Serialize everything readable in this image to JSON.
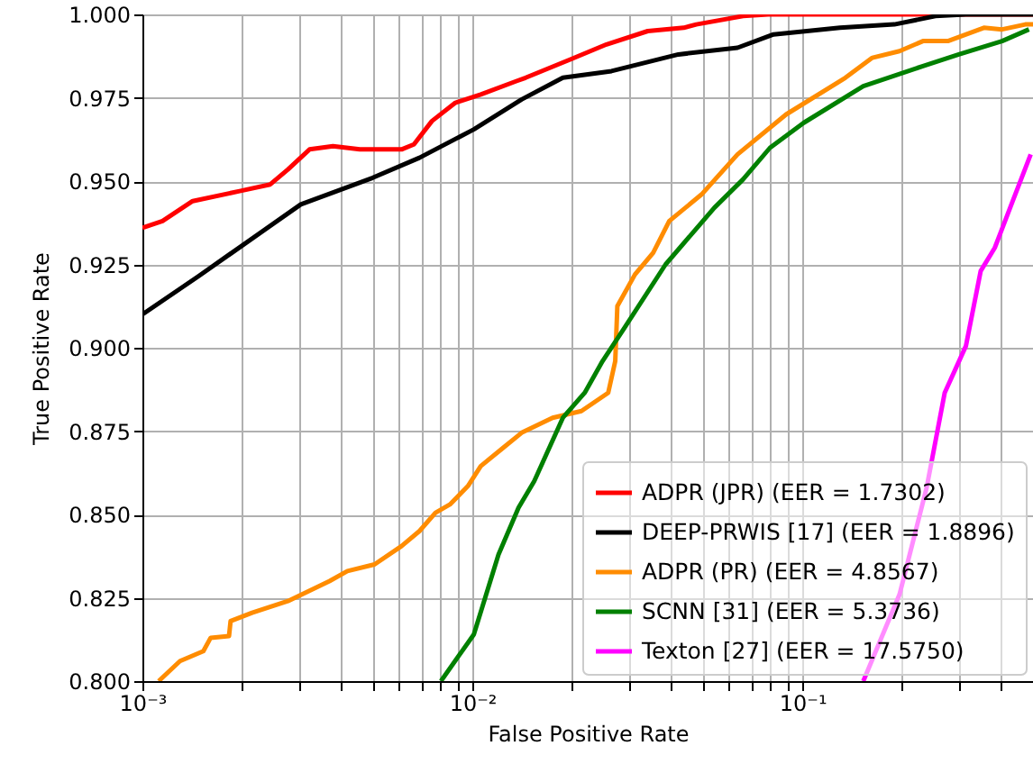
{
  "chart_data": {
    "type": "line",
    "xlabel": "False Positive Rate",
    "ylabel": "True Positive Rate",
    "log": "x",
    "grid": true,
    "legend": "bottom right",
    "xlim": [
      0.001,
      0.5
    ],
    "ylim": [
      0.8,
      1.0
    ],
    "xticks": [
      {
        "value": 0.001,
        "label": "10⁻³"
      },
      {
        "value": 0.002,
        "label": null
      },
      {
        "value": 0.003,
        "label": null
      },
      {
        "value": 0.004,
        "label": null
      },
      {
        "value": 0.005,
        "label": null
      },
      {
        "value": 0.006,
        "label": null
      },
      {
        "value": 0.007,
        "label": null
      },
      {
        "value": 0.008,
        "label": null
      },
      {
        "value": 0.009,
        "label": null
      },
      {
        "value": 0.01,
        "label": "10⁻²"
      },
      {
        "value": 0.02,
        "label": null
      },
      {
        "value": 0.03,
        "label": null
      },
      {
        "value": 0.04,
        "label": null
      },
      {
        "value": 0.05,
        "label": null
      },
      {
        "value": 0.06,
        "label": null
      },
      {
        "value": 0.07,
        "label": null
      },
      {
        "value": 0.08,
        "label": null
      },
      {
        "value": 0.09,
        "label": null
      },
      {
        "value": 0.1,
        "label": "10⁻¹"
      },
      {
        "value": 0.2,
        "label": null
      },
      {
        "value": 0.3,
        "label": null
      },
      {
        "value": 0.4,
        "label": null
      }
    ],
    "yticks": [
      {
        "value": 0.8,
        "label": "0.800"
      },
      {
        "value": 0.825,
        "label": "0.825"
      },
      {
        "value": 0.85,
        "label": "0.850"
      },
      {
        "value": 0.875,
        "label": "0.875"
      },
      {
        "value": 0.9,
        "label": "0.900"
      },
      {
        "value": 0.925,
        "label": "0.925"
      },
      {
        "value": 0.95,
        "label": "0.950"
      },
      {
        "value": 0.975,
        "label": "0.975"
      },
      {
        "value": 1.0,
        "label": "1.000"
      }
    ],
    "series": [
      {
        "name": "ADPR (JPR) (EER = 1.7302)",
        "color": "#ff0000",
        "x": [
          0.001,
          0.00115,
          0.00142,
          0.00197,
          0.00244,
          0.00276,
          0.00321,
          0.00378,
          0.00456,
          0.0061,
          0.00665,
          0.00754,
          0.00888,
          0.0106,
          0.0136,
          0.0145,
          0.0198,
          0.0255,
          0.034,
          0.0437,
          0.0477,
          0.0661,
          0.0787,
          0.5
        ],
        "values": [
          0.936,
          0.938,
          0.944,
          0.947,
          0.949,
          0.9535,
          0.9595,
          0.9605,
          0.9595,
          0.9595,
          0.961,
          0.968,
          0.9735,
          0.976,
          0.98,
          0.981,
          0.9865,
          0.991,
          0.995,
          0.996,
          0.997,
          0.9995,
          1.0,
          1.0
        ]
      },
      {
        "name": "DEEP-PRWIS [17] (EER = 1.8896)",
        "color": "#000000",
        "x": [
          0.001,
          0.00148,
          0.00302,
          0.00499,
          0.00691,
          0.0101,
          0.0141,
          0.0188,
          0.0264,
          0.0421,
          0.0636,
          0.0818,
          0.13,
          0.19,
          0.253,
          0.313,
          0.5
        ],
        "values": [
          0.91,
          0.9215,
          0.943,
          0.951,
          0.957,
          0.9655,
          0.9745,
          0.981,
          0.983,
          0.988,
          0.99,
          0.994,
          0.996,
          0.997,
          0.9995,
          1.0,
          1.0
        ]
      },
      {
        "name": "ADPR (PR) (EER = 4.8567)",
        "color": "#ff8c00",
        "x": [
          0.00112,
          0.0013,
          0.00153,
          0.00161,
          0.00183,
          0.00185,
          0.00215,
          0.00276,
          0.00369,
          0.00418,
          0.00505,
          0.0061,
          0.00691,
          0.00773,
          0.00855,
          0.00969,
          0.0106,
          0.0124,
          0.0141,
          0.0175,
          0.0214,
          0.0258,
          0.0271,
          0.0275,
          0.0311,
          0.0353,
          0.0395,
          0.0495,
          0.0636,
          0.0893,
          0.135,
          0.163,
          0.197,
          0.232,
          0.276,
          0.355,
          0.403,
          0.474,
          0.5
        ],
        "values": [
          0.8,
          0.806,
          0.809,
          0.813,
          0.8135,
          0.818,
          0.8205,
          0.824,
          0.83,
          0.833,
          0.835,
          0.8405,
          0.845,
          0.8505,
          0.853,
          0.8585,
          0.8645,
          0.87,
          0.8745,
          0.879,
          0.881,
          0.8865,
          0.896,
          0.9125,
          0.922,
          0.9285,
          0.938,
          0.946,
          0.958,
          0.97,
          0.981,
          0.987,
          0.989,
          0.992,
          0.992,
          0.996,
          0.9955,
          0.997,
          0.997
        ]
      },
      {
        "name": "SCNN [31] (EER = 5.3736)",
        "color": "#008000",
        "x": [
          0.00803,
          0.0101,
          0.012,
          0.0138,
          0.0154,
          0.0188,
          0.0219,
          0.0248,
          0.0289,
          0.0385,
          0.0541,
          0.0661,
          0.0798,
          0.101,
          0.153,
          0.232,
          0.298,
          0.403,
          0.486
        ],
        "values": [
          0.8,
          0.814,
          0.838,
          0.852,
          0.86,
          0.879,
          0.8865,
          0.896,
          0.906,
          0.925,
          0.942,
          0.9505,
          0.96,
          0.9675,
          0.9785,
          0.9845,
          0.988,
          0.992,
          0.9955
        ]
      },
      {
        "name": "Texton [27] (EER = 17.5750)",
        "color": "#ff00ff",
        "x": [
          0.153,
          0.197,
          0.238,
          0.27,
          0.313,
          0.347,
          0.383,
          0.434,
          0.492
        ],
        "values": [
          0.8,
          0.826,
          0.858,
          0.8865,
          0.9005,
          0.923,
          0.93,
          0.944,
          0.958
        ]
      }
    ]
  }
}
